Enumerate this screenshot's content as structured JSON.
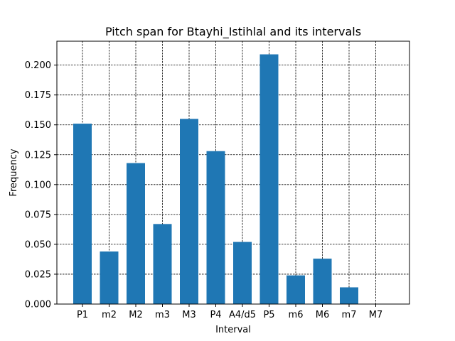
{
  "chart_data": {
    "type": "bar",
    "title": "Pitch span for Btayhi_Istihlal and its intervals",
    "xlabel": "Interval",
    "ylabel": "Frequency",
    "categories": [
      "P1",
      "m2",
      "M2",
      "m3",
      "M3",
      "P4",
      "A4/d5",
      "P5",
      "m6",
      "M6",
      "m7",
      "M7"
    ],
    "values": [
      0.151,
      0.044,
      0.118,
      0.067,
      0.155,
      0.128,
      0.052,
      0.209,
      0.024,
      0.038,
      0.014,
      0.0
    ],
    "ylim": [
      0,
      0.22
    ],
    "yticks": [
      0.0,
      0.025,
      0.05,
      0.075,
      0.1,
      0.125,
      0.15,
      0.175,
      0.2
    ],
    "ytick_labels": [
      "0.000",
      "0.025",
      "0.050",
      "0.075",
      "0.100",
      "0.125",
      "0.150",
      "0.175",
      "0.200"
    ],
    "grid": true,
    "bar_color": "#1f77b4"
  }
}
